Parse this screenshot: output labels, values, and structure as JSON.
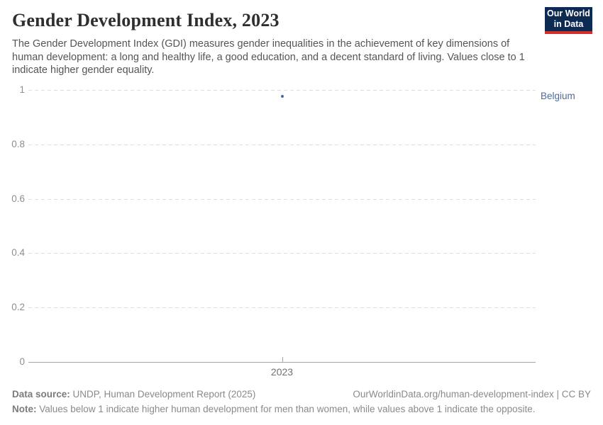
{
  "header": {
    "title": "Gender Development Index, 2023",
    "subtitle": "The Gender Development Index (GDI) measures gender inequalities in the achievement of key dimensions of human development: a long and healthy life, a good education, and a decent standard of living. Values close to 1 indicate higher gender equality."
  },
  "logo": {
    "line1": "Our World",
    "line2": "in Data",
    "bg_color": "#0d2a52",
    "accent_color": "#d1312a"
  },
  "chart_data": {
    "type": "scatter",
    "title": "Gender Development Index, 2023",
    "x": [
      2023
    ],
    "xtick_labels": [
      "2023"
    ],
    "series": [
      {
        "name": "Belgium",
        "color": "#4c6a9c",
        "values": [
          0.977
        ]
      }
    ],
    "ylim": [
      0,
      1
    ],
    "yticks": [
      0,
      0.2,
      0.4,
      0.6,
      0.8,
      1
    ],
    "grid": true,
    "gridline_color": "#dddddd",
    "axis_color": "#a6a6a6",
    "entity_label_position": "right"
  },
  "footer": {
    "datasource_label": "Data source:",
    "datasource_text": "UNDP, Human Development Report (2025)",
    "citation_text": "OurWorldinData.org/human-development-index | CC BY",
    "note_label": "Note:",
    "note_text": "Values below 1 indicate higher human development for men than women, while values above 1 indicate the opposite."
  }
}
